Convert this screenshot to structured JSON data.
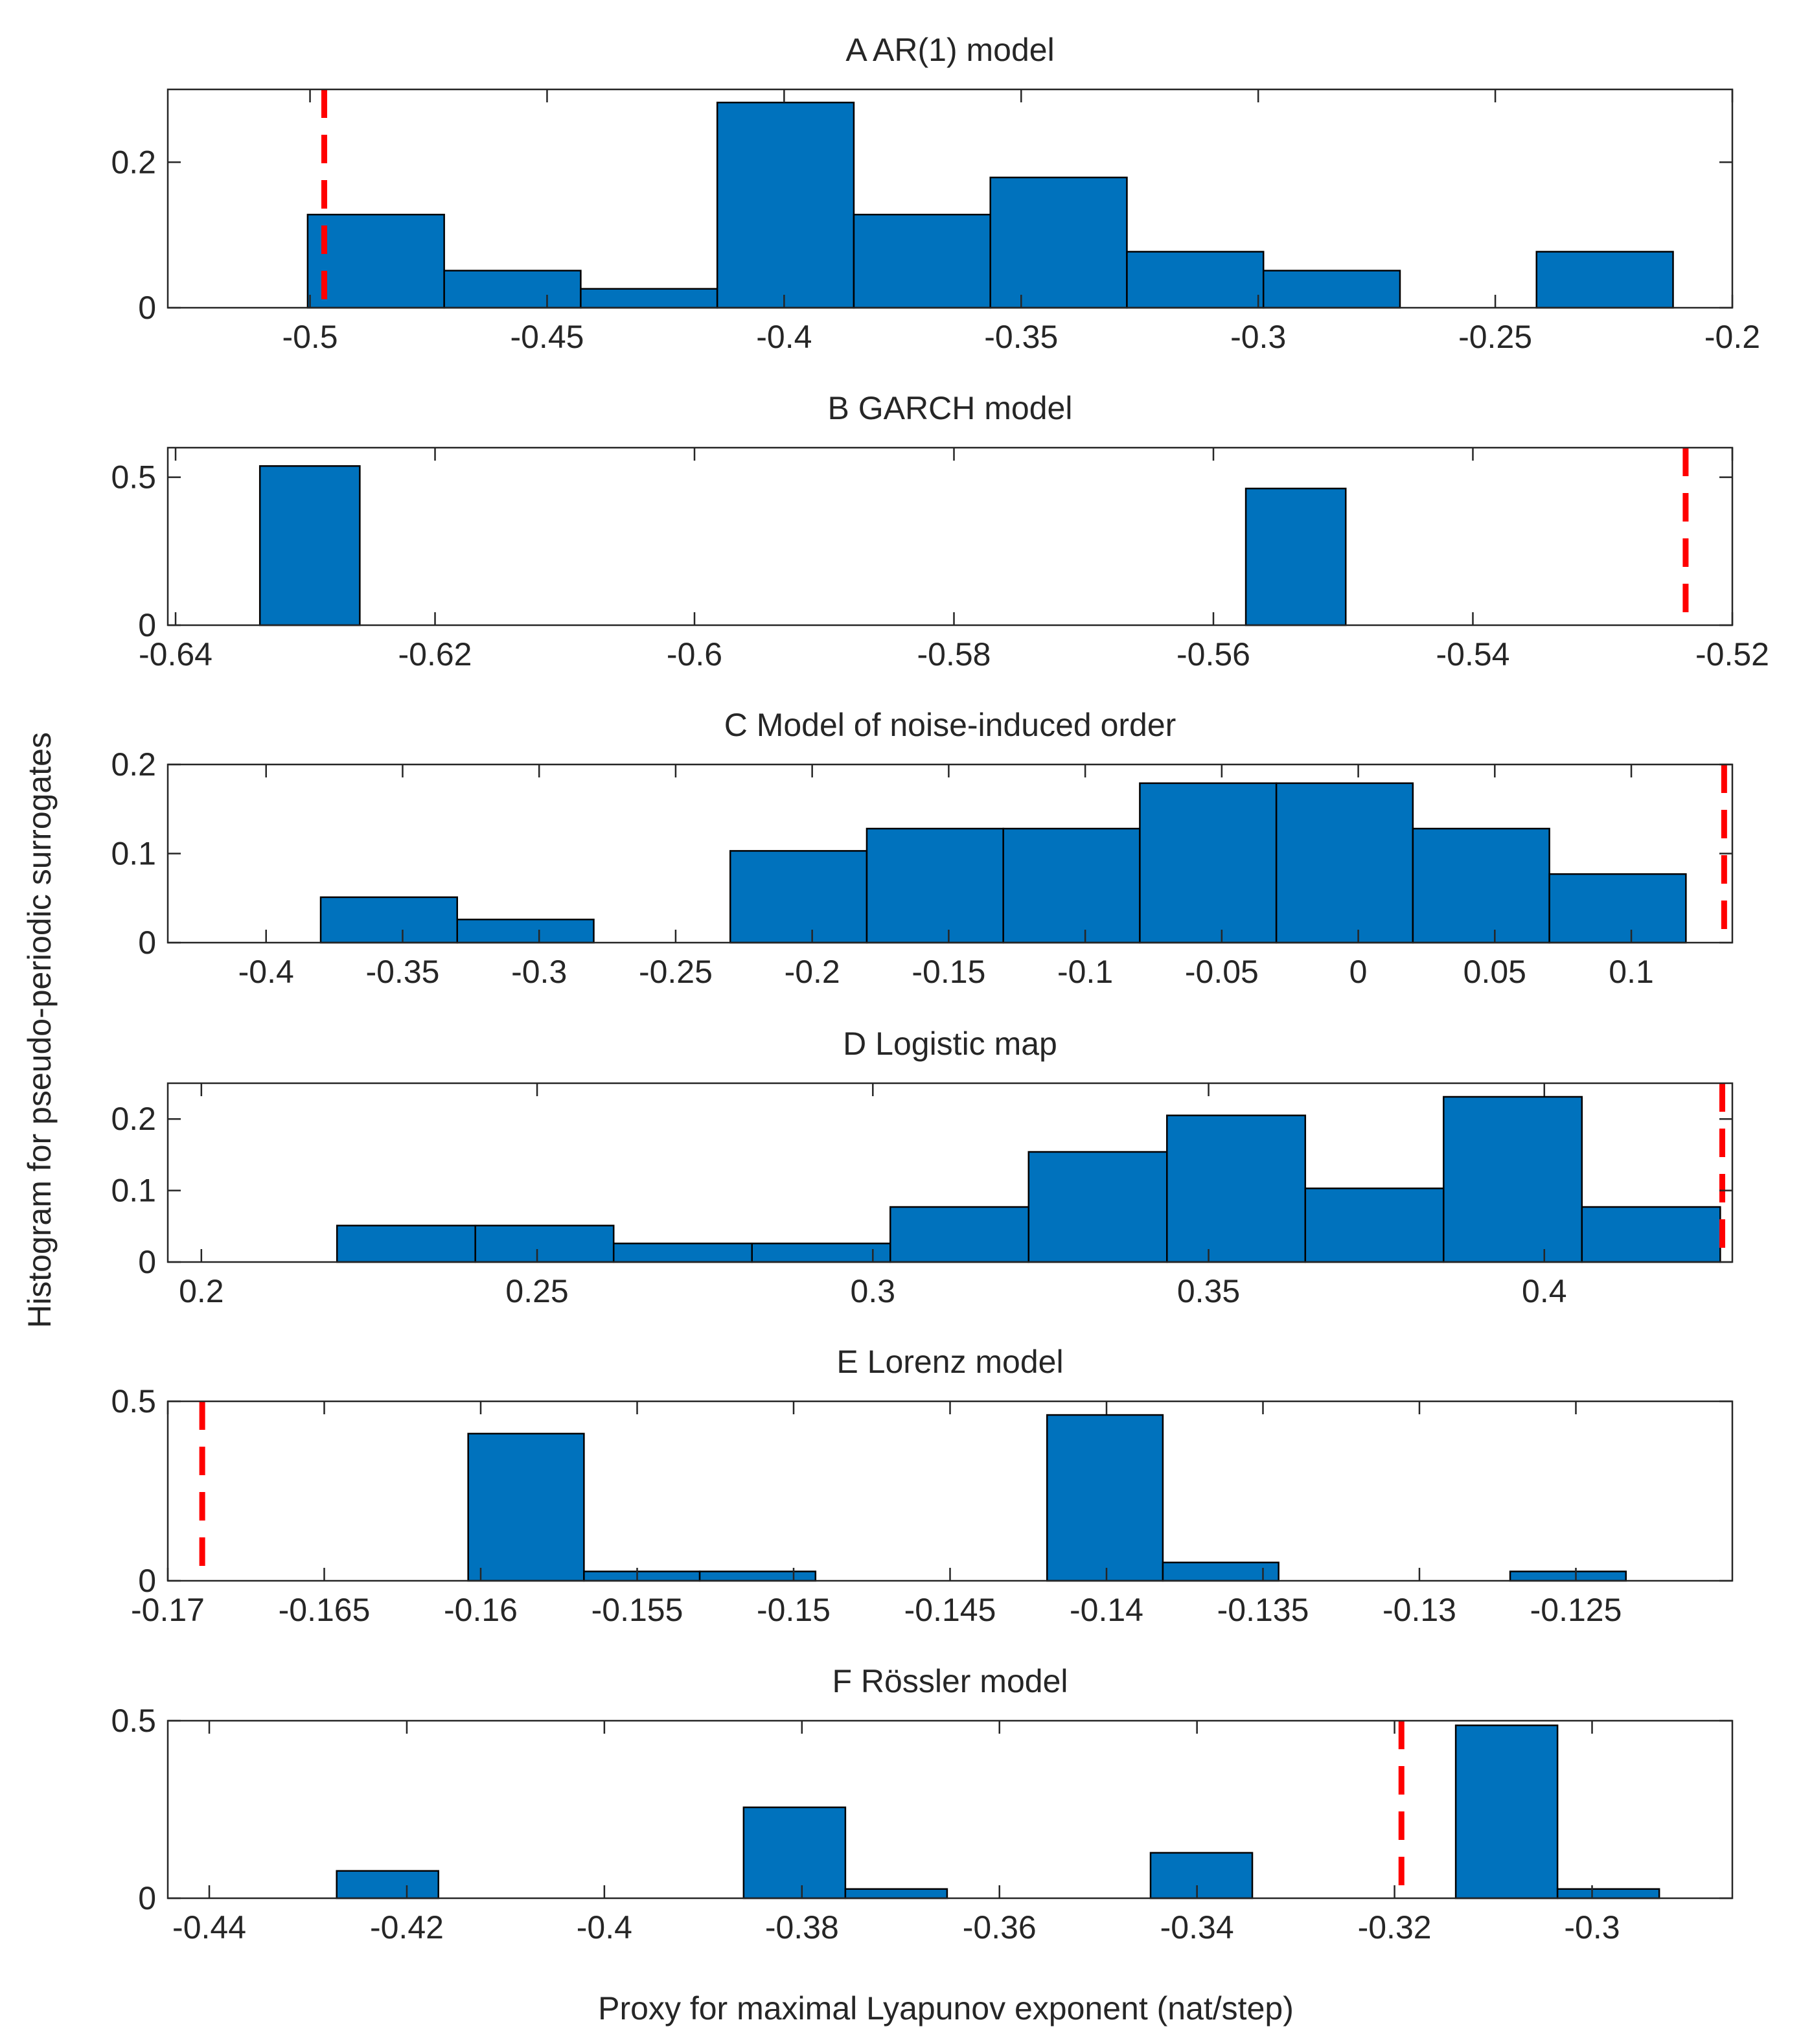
{
  "figure": {
    "ylabel": "Histogram for pseudo-periodic surrogates",
    "xlabel": "Proxy for maximal Lyapunov exponent (nat/step)"
  },
  "colors": {
    "bar": "#0072BD",
    "bar_edge": "#000000",
    "marker": "#FF0000",
    "axis": "#262626"
  },
  "chart_data": [
    {
      "type": "bar",
      "title": "A AR(1) model",
      "xlim": [
        -0.53,
        -0.2
      ],
      "ylim": [
        0,
        0.3
      ],
      "bin_width": 0.0288,
      "xticks": [
        -0.5,
        -0.45,
        -0.4,
        -0.35,
        -0.3,
        -0.25,
        -0.2
      ],
      "xtick_labels": [
        "-0.5",
        "-0.45",
        "-0.4",
        "-0.35",
        "-0.3",
        "-0.25",
        "-0.2"
      ],
      "yticks": [
        0,
        0.2
      ],
      "ytick_labels": [
        "0",
        "0.2"
      ],
      "bins": [
        -0.5005,
        -0.4717,
        -0.4429,
        -0.4141,
        -0.3853,
        -0.3565,
        -0.3277,
        -0.2989,
        -0.2701,
        -0.2413
      ],
      "values": [
        0.128,
        0.051,
        0.026,
        0.282,
        0.128,
        0.179,
        0.077,
        0.051,
        0,
        0.077
      ],
      "marker_x": -0.497
    },
    {
      "type": "bar",
      "title": "B GARCH model",
      "xlim": [
        -0.6406,
        -0.52
      ],
      "ylim": [
        0,
        0.6
      ],
      "bin_width": 0.0077,
      "xticks": [
        -0.64,
        -0.62,
        -0.6,
        -0.58,
        -0.56,
        -0.54,
        -0.52
      ],
      "xtick_labels": [
        "-0.64",
        "-0.62",
        "-0.6",
        "-0.58",
        "-0.56",
        "-0.54",
        "-0.52"
      ],
      "yticks": [
        0,
        0.5
      ],
      "ytick_labels": [
        "0",
        "0.5"
      ],
      "bins": [
        -0.6335,
        -0.5575
      ],
      "values": [
        0.538,
        0.462
      ],
      "marker_x": -0.5236
    },
    {
      "type": "bar",
      "title": "C Model of noise-induced order",
      "xlim": [
        -0.436,
        0.137
      ],
      "ylim": [
        0,
        0.2
      ],
      "bin_width": 0.05,
      "xticks": [
        -0.4,
        -0.35,
        -0.3,
        -0.25,
        -0.2,
        -0.15,
        -0.1,
        -0.05,
        0,
        0.05,
        0.1
      ],
      "xtick_labels": [
        "-0.4",
        "-0.35",
        "-0.3",
        "-0.25",
        "-0.2",
        "-0.15",
        "-0.1",
        "-0.05",
        "0",
        "0.05",
        "0.1"
      ],
      "yticks": [
        0,
        0.1,
        0.2
      ],
      "ytick_labels": [
        "0",
        "0.1",
        "0.2"
      ],
      "bins": [
        -0.38,
        -0.33,
        -0.28,
        -0.23,
        -0.18,
        -0.13,
        -0.08,
        -0.03,
        0.02,
        0.07
      ],
      "values": [
        0.051,
        0.026,
        0,
        0.103,
        0.128,
        0.128,
        0.179,
        0.179,
        0.128,
        0.077
      ],
      "marker_x": 0.134
    },
    {
      "type": "bar",
      "title": "D Logistic map",
      "xlim": [
        0.195,
        0.428
      ],
      "ylim": [
        0,
        0.25
      ],
      "bin_width": 0.0206,
      "xticks": [
        0.2,
        0.25,
        0.3,
        0.35,
        0.4
      ],
      "xtick_labels": [
        "0.2",
        "0.25",
        "0.3",
        "0.35",
        "0.4"
      ],
      "yticks": [
        0,
        0.1,
        0.2
      ],
      "ytick_labels": [
        "0",
        "0.1",
        "0.2"
      ],
      "bins": [
        0.2202,
        0.2408,
        0.2614,
        0.282,
        0.3026,
        0.3232,
        0.3438,
        0.3644,
        0.385,
        0.4056
      ],
      "values": [
        0.051,
        0.051,
        0.026,
        0.026,
        0.077,
        0.154,
        0.205,
        0.103,
        0.231,
        0.077
      ],
      "marker_x": 0.4265
    },
    {
      "type": "bar",
      "title": "E Lorenz model",
      "xlim": [
        -0.17,
        -0.12
      ],
      "ylim": [
        0,
        0.5
      ],
      "bin_width": 0.0037,
      "xticks": [
        -0.17,
        -0.165,
        -0.16,
        -0.155,
        -0.15,
        -0.145,
        -0.14,
        -0.135,
        -0.13,
        -0.125
      ],
      "xtick_labels": [
        "-0.17",
        "-0.165",
        "-0.16",
        "-0.155",
        "-0.15",
        "-0.145",
        "-0.14",
        "-0.135",
        "-0.13",
        "-0.125"
      ],
      "yticks": [
        0,
        0.5
      ],
      "ytick_labels": [
        "0",
        "0.5"
      ],
      "bins": [
        -0.1604,
        -0.1567,
        -0.153,
        -0.1493,
        -0.1456,
        -0.1419,
        -0.1382,
        -0.1345,
        -0.1308,
        -0.1271
      ],
      "values": [
        0.41,
        0.026,
        0.026,
        0,
        0,
        0.462,
        0.051,
        0,
        0,
        0.026
      ],
      "marker_x": -0.1689
    },
    {
      "type": "bar",
      "title": "F Rössler model",
      "xlim": [
        -0.4442,
        -0.2858
      ],
      "ylim": [
        0,
        0.5
      ],
      "bin_width": 0.0103,
      "xticks": [
        -0.44,
        -0.42,
        -0.4,
        -0.38,
        -0.36,
        -0.34,
        -0.32,
        -0.3
      ],
      "xtick_labels": [
        "-0.44",
        "-0.42",
        "-0.4",
        "-0.38",
        "-0.36",
        "-0.34",
        "-0.32",
        "-0.3"
      ],
      "yticks": [
        0,
        0.5
      ],
      "ytick_labels": [
        "0",
        "0.5"
      ],
      "bins": [
        -0.4271,
        -0.4168,
        -0.4065,
        -0.3962,
        -0.3859,
        -0.3756,
        -0.3653,
        -0.355,
        -0.3447,
        -0.3344,
        -0.3241,
        -0.3138,
        -0.3035
      ],
      "values": [
        0.077,
        0,
        0,
        0,
        0.256,
        0.026,
        0,
        0,
        0.128,
        0,
        0,
        0.487,
        0.026
      ],
      "marker_x": -0.3193
    }
  ]
}
